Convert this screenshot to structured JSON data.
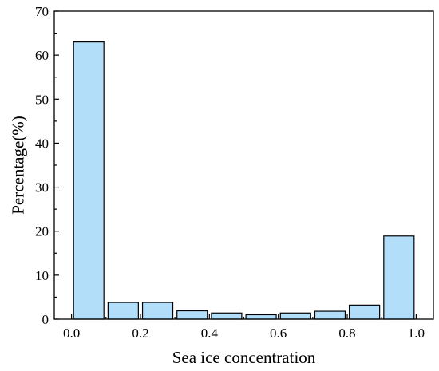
{
  "chart_data": {
    "type": "bar",
    "title": "",
    "xlabel": "Sea ice concentration",
    "ylabel": "Percentage(%)",
    "xlim": [
      -0.05,
      1.05
    ],
    "ylim": [
      0,
      70
    ],
    "x_ticks": [
      0.0,
      0.2,
      0.4,
      0.6,
      0.8,
      1.0
    ],
    "x_tick_labels": [
      "0.0",
      "0.2",
      "0.4",
      "0.6",
      "0.8",
      "1.0"
    ],
    "y_ticks": [
      0,
      10,
      20,
      30,
      40,
      50,
      60,
      70
    ],
    "y_tick_labels": [
      "0",
      "10",
      "20",
      "30",
      "40",
      "50",
      "60",
      "70"
    ],
    "bin_width": 0.1,
    "bins": [
      {
        "start": 0.0,
        "end": 0.1,
        "value": 63.0
      },
      {
        "start": 0.1,
        "end": 0.2,
        "value": 3.8
      },
      {
        "start": 0.2,
        "end": 0.3,
        "value": 3.8
      },
      {
        "start": 0.3,
        "end": 0.4,
        "value": 1.9
      },
      {
        "start": 0.4,
        "end": 0.5,
        "value": 1.4
      },
      {
        "start": 0.5,
        "end": 0.6,
        "value": 1.0
      },
      {
        "start": 0.6,
        "end": 0.7,
        "value": 1.4
      },
      {
        "start": 0.7,
        "end": 0.8,
        "value": 1.8
      },
      {
        "start": 0.8,
        "end": 0.9,
        "value": 3.2
      },
      {
        "start": 0.9,
        "end": 1.0,
        "value": 18.9
      }
    ],
    "bar_color": "#B3DEFA",
    "bar_edge_color": "#000000",
    "grid": false,
    "legend": "none"
  }
}
